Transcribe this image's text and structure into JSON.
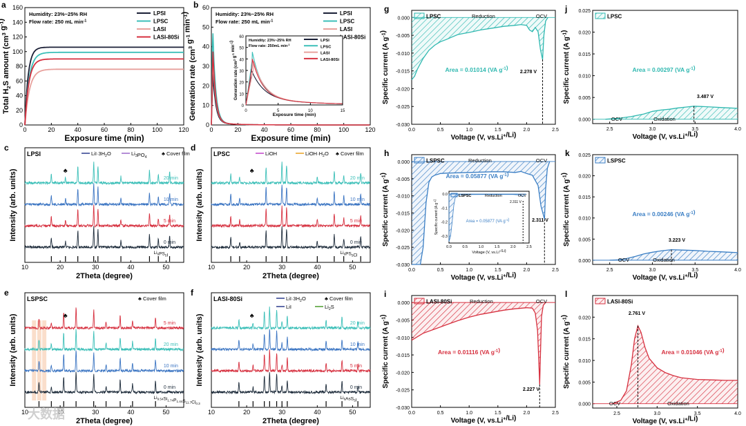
{
  "watermark": "大数据",
  "chart_data": [
    {
      "panel": "a",
      "type": "line",
      "xlabel": "Exposure time  (min)",
      "ylabel": "Total H2S amount (cm3 g-1)",
      "xlim": [
        0,
        120
      ],
      "ylim": [
        0,
        160
      ],
      "xticks": [
        0,
        20,
        40,
        60,
        80,
        100,
        120
      ],
      "yticks": [
        0,
        20,
        40,
        60,
        80,
        100,
        120,
        140,
        160
      ],
      "annotations": [
        "Humidity: 23%~25% RH",
        "Flow rate: 250 mL min-1"
      ],
      "legend": "top-right",
      "series": [
        {
          "name": "LPSI",
          "color": "#1a1f36",
          "plateau": 106,
          "tau": 2.5
        },
        {
          "name": "LPSC",
          "color": "#3bbfb8",
          "plateau": 99,
          "tau": 3.2
        },
        {
          "name": "LASI",
          "color": "#e8a09c",
          "plateau": 76,
          "tau": 3.5
        },
        {
          "name": "LASI-80Si",
          "color": "#d62f3e",
          "plateau": 90,
          "tau": 3.0
        }
      ]
    },
    {
      "panel": "b",
      "type": "line",
      "xlabel": "Exposure time  (min)",
      "ylabel": "Generation rate (cm3 g-1 min-1)",
      "xlim": [
        0,
        120
      ],
      "ylim": [
        0,
        60
      ],
      "xticks": [
        0,
        20,
        40,
        60,
        80,
        100,
        120
      ],
      "yticks": [
        0,
        10,
        20,
        30,
        40,
        50,
        60
      ],
      "annotations": [
        "Humidity: 23%~25% RH",
        "Flow rate: 250 mL min-1"
      ],
      "legend": "top-right",
      "series": [
        {
          "name": "LPSI",
          "color": "#1a1f36",
          "peak": 25,
          "peak_time": 1.2
        },
        {
          "name": "LPSC",
          "color": "#3bbfb8",
          "peak": 50,
          "peak_time": 1.0
        },
        {
          "name": "LASI",
          "color": "#e8a09c",
          "peak": 32,
          "peak_time": 1.2
        },
        {
          "name": "LASI-80Si",
          "color": "#d62f3e",
          "peak": 38,
          "peak_time": 1.1
        }
      ],
      "inset": {
        "xlabel": "Exposure time  (min)",
        "ylabel": "Generation rate (cm3 g-1 min-1)",
        "xlim": [
          0,
          15
        ],
        "ylim": [
          0,
          60
        ],
        "xticks": [
          0,
          5,
          10,
          15
        ],
        "yticks": [
          0,
          10,
          20,
          30,
          40,
          50,
          60
        ],
        "annotations": [
          "Humidity: 23%~25% RH",
          "Flow rate: 250mL min-1"
        ],
        "legend": [
          "LPSI",
          "LPSC",
          "LASI",
          "LASI-80Si"
        ]
      }
    },
    {
      "panel": "c",
      "type": "line",
      "title": "LPSI",
      "xlabel": "2Theta (degree)",
      "ylabel": "Intensity (arb. units)",
      "xlim": [
        10,
        55
      ],
      "xticks": [
        10,
        20,
        30,
        40,
        50
      ],
      "legend_entries": [
        "LiI·3H2O",
        "Li3PO4",
        "♣ Cover film"
      ],
      "legend_colors": [
        "#2b3a8c",
        "#9a66c8",
        "#222222"
      ],
      "traces": [
        {
          "name": "0 min",
          "color": "#1d2b3a"
        },
        {
          "name": "5 min",
          "color": "#d62f3e"
        },
        {
          "name": "10 min",
          "color": "#3a74c2"
        },
        {
          "name": "20 min",
          "color": "#3bbfb8"
        }
      ],
      "peaks": [
        17.5,
        21.5,
        25.0,
        29.5,
        30.7,
        37.2,
        45.3,
        47.8,
        51.0
      ],
      "reference": "Li6PS5I",
      "cover_film_mark": 21.5
    },
    {
      "panel": "d",
      "type": "line",
      "title": "LPSC",
      "xlabel": "2Theta (degree)",
      "ylabel": "Intensity (arb. units)",
      "xlim": [
        10,
        55
      ],
      "xticks": [
        10,
        20,
        30,
        40,
        50
      ],
      "legend_entries": [
        "LiOH",
        "LiOH·H2O",
        "♣ Cover film"
      ],
      "legend_colors": [
        "#c040c8",
        "#e8a020",
        "#222222"
      ],
      "traces": [
        {
          "name": "0 min",
          "color": "#1d2b3a"
        },
        {
          "name": "5 min",
          "color": "#d62f3e"
        },
        {
          "name": "10 min",
          "color": "#3a74c2"
        },
        {
          "name": "20 min",
          "color": "#3bbfb8"
        }
      ],
      "peaks": [
        15.5,
        18.0,
        25.5,
        30.0,
        31.3,
        40.0,
        44.8,
        47.5,
        52.3
      ],
      "reference": "Li6PS5Cl",
      "cover_film_mark": 21.5
    },
    {
      "panel": "e",
      "type": "line",
      "title": "LSPSC",
      "xlabel": "2Theta (degree)",
      "ylabel": "Intensity (arb. units)",
      "xlim": [
        10,
        55
      ],
      "xticks": [
        10,
        20,
        30,
        40,
        50
      ],
      "legend_entries": [
        "♣ Cover film"
      ],
      "legend_colors": [
        "#222222"
      ],
      "traces": [
        {
          "name": "0 min",
          "color": "#1d2b3a"
        },
        {
          "name": "10 min",
          "color": "#3a74c2"
        },
        {
          "name": "20 min",
          "color": "#3bbfb8"
        },
        {
          "name": "5 min",
          "color": "#d62f3e"
        }
      ],
      "peaks": [
        14.0,
        17.5,
        21.0,
        24.5,
        29.5,
        33.0,
        37.0,
        40.5,
        47.0
      ],
      "reference": "Li9.54Si1.74P1.44S11.7Cl0.3",
      "cover_film_mark": 21.5
    },
    {
      "panel": "f",
      "type": "line",
      "title": "LASI-80Si",
      "xlabel": "2Theta (degree)",
      "ylabel": "Intensity (arb. units)",
      "xlim": [
        10,
        55
      ],
      "xticks": [
        10,
        20,
        30,
        40,
        50
      ],
      "legend_entries": [
        "LiI·3H2O",
        "♣ Cover film",
        "LiI",
        "Li2S"
      ],
      "legend_colors": [
        "#2b3a8c",
        "#222222",
        "#2b3a8c",
        "#4a9a2a"
      ],
      "traces": [
        {
          "name": "0 min",
          "color": "#1d2b3a"
        },
        {
          "name": "5 min",
          "color": "#d62f3e"
        },
        {
          "name": "10 min",
          "color": "#3a74c2"
        },
        {
          "name": "20 min",
          "color": "#3bbfb8"
        }
      ],
      "peaks": [
        17.8,
        21.8,
        25.0,
        26.5,
        28.5,
        30.0,
        31.5,
        42.5,
        47.0,
        51.5
      ],
      "reference": "Li6AsS5I",
      "cover_film_mark": 21.5
    },
    {
      "panel": "g",
      "type": "area",
      "name": "LPSC",
      "xlabel": "Voltage (V, vs.Li+/Li)",
      "ylabel": "Specific current (A g-1)",
      "xlim": [
        0,
        2.5
      ],
      "ylim": [
        -0.03,
        0.002
      ],
      "xticks": [
        0.0,
        0.5,
        1.0,
        1.5,
        2.0,
        2.5
      ],
      "yticks": [
        0.0,
        -0.005,
        -0.01,
        -0.015,
        -0.02,
        -0.025,
        -0.03
      ],
      "labels": [
        "Reduction",
        "OCV"
      ],
      "area_label": "Area = 0.01014 (VA g-1)",
      "peak_label": "2.278 V",
      "peak_x": 2.278,
      "color": "#2fb8b0",
      "x": [
        0.0,
        0.05,
        0.1,
        0.2,
        0.3,
        0.4,
        0.5,
        0.6,
        0.7,
        0.8,
        0.9,
        1.0,
        1.2,
        1.4,
        1.6,
        1.8,
        1.9,
        2.0,
        2.05,
        2.1,
        2.15,
        2.2,
        2.24,
        2.278,
        2.3,
        2.33,
        2.37
      ],
      "y": [
        -0.0175,
        -0.0165,
        -0.0145,
        -0.0115,
        -0.0092,
        -0.0078,
        -0.0068,
        -0.0062,
        -0.0055,
        -0.0048,
        -0.0045,
        -0.0042,
        -0.0035,
        -0.003,
        -0.0025,
        -0.0022,
        -0.002,
        -0.0022,
        -0.0035,
        -0.004,
        -0.0028,
        -0.004,
        -0.009,
        -0.0118,
        -0.005,
        -0.001,
        0.0
      ]
    },
    {
      "panel": "h",
      "type": "area",
      "name": "LSPSC",
      "xlabel": "Voltage (V, vs.Li+/Li)",
      "ylabel": "Specific current (A g-1)",
      "xlim": [
        0,
        2.5
      ],
      "ylim": [
        -0.03,
        0.002
      ],
      "xticks": [
        0.0,
        0.5,
        1.0,
        1.5,
        2.0,
        2.5
      ],
      "yticks": [
        0.0,
        -0.005,
        -0.01,
        -0.015,
        -0.02,
        -0.025,
        -0.03
      ],
      "labels": [
        "Reduction",
        "OCV"
      ],
      "area_label": "Area = 0.05877 (VA g-1)",
      "peak_label": "2.311 V",
      "peak_x": 2.311,
      "color": "#3a7ec4",
      "x": [
        0.0,
        0.05,
        0.1,
        0.15,
        0.2,
        0.25,
        0.3,
        0.35,
        0.4,
        0.5,
        0.6,
        0.8,
        1.0,
        1.2,
        1.4,
        1.6,
        1.8,
        1.9,
        2.0,
        2.1,
        2.2,
        2.25,
        2.311,
        2.33,
        2.36,
        2.4
      ],
      "y": [
        -0.03,
        -0.03,
        -0.03,
        -0.03,
        -0.025,
        -0.012,
        -0.006,
        -0.0045,
        -0.004,
        -0.0035,
        -0.0034,
        -0.0033,
        -0.0032,
        -0.0031,
        -0.003,
        -0.003,
        -0.0032,
        -0.0029,
        -0.0035,
        -0.004,
        -0.007,
        -0.013,
        -0.0168,
        -0.008,
        -0.002,
        0.0
      ],
      "inset": {
        "name": "LSPSC",
        "labels": [
          "Reduction",
          "OCV"
        ],
        "area_label": "Area = 0.05877 (VA g-1)",
        "peak_label": "2.311 V",
        "xlabel": "Voltage (V, vs.Li+/Li)",
        "ylabel": "Specific current (A g-1)",
        "xticks": [
          0.0,
          0.5,
          1.0,
          1.5,
          2.0,
          2.5
        ],
        "yticks": [
          0.0,
          -0.1,
          -0.2,
          -0.3
        ]
      }
    },
    {
      "panel": "i",
      "type": "area",
      "name": "LASI-80Si",
      "xlabel": "Voltage (V, vs.Li+/Li)",
      "ylabel": "Specific current (A g-1)",
      "xlim": [
        0,
        2.5
      ],
      "ylim": [
        -0.03,
        0.002
      ],
      "xticks": [
        0.0,
        0.5,
        1.0,
        1.5,
        2.0,
        2.5
      ],
      "yticks": [
        0.0,
        -0.005,
        -0.01,
        -0.015,
        -0.02,
        -0.025,
        -0.03
      ],
      "labels": [
        "Reduction",
        "OCV"
      ],
      "area_label": "Area = 0.01116 (VA g-1)",
      "peak_label": "2.227 V",
      "peak_x": 2.227,
      "color": "#d62f3e",
      "x": [
        0.0,
        0.1,
        0.2,
        0.4,
        0.6,
        0.8,
        1.0,
        1.2,
        1.4,
        1.6,
        1.8,
        2.0,
        2.1,
        2.15,
        2.19,
        2.21,
        2.227,
        2.24,
        2.26,
        2.29,
        2.33
      ],
      "y": [
        -0.0108,
        -0.0098,
        -0.0088,
        -0.0076,
        -0.0064,
        -0.0052,
        -0.0042,
        -0.0034,
        -0.0028,
        -0.0022,
        -0.0018,
        -0.0015,
        -0.0016,
        -0.003,
        -0.008,
        -0.016,
        -0.0235,
        -0.015,
        -0.004,
        -0.0008,
        0.0
      ]
    },
    {
      "panel": "j",
      "type": "area",
      "name": "LPSC",
      "xlabel": "Voltage (V, vs.Li+/Li)",
      "ylabel": "Specific current (A g-1)",
      "xlim": [
        2.3,
        4.0
      ],
      "ylim": [
        -0.001,
        0.025
      ],
      "xticks": [
        2.5,
        3.0,
        3.5,
        4.0
      ],
      "yticks": [
        0.0,
        0.005,
        0.01,
        0.015,
        0.02,
        0.025
      ],
      "labels": [
        "OCV",
        "Oxidation"
      ],
      "area_label": "Area = 0.00297 (VA g-1)",
      "peak_label": "3.487 V",
      "peak_x": 3.487,
      "color": "#2fb8b0",
      "x": [
        2.45,
        2.6,
        2.75,
        2.9,
        3.0,
        3.1,
        3.2,
        3.3,
        3.4,
        3.487,
        3.6,
        3.7,
        3.8,
        3.9,
        4.0
      ],
      "y": [
        0.0,
        0.0002,
        0.0006,
        0.0012,
        0.0018,
        0.0021,
        0.0023,
        0.0026,
        0.0028,
        0.003,
        0.0029,
        0.0028,
        0.0027,
        0.0026,
        0.0025
      ]
    },
    {
      "panel": "k",
      "type": "area",
      "name": "LSPSC",
      "xlabel": "Voltage (V, vs.Li+/Li)",
      "ylabel": "Specific current (A g-1)",
      "xlim": [
        2.3,
        4.0
      ],
      "ylim": [
        -0.001,
        0.025
      ],
      "xticks": [
        2.5,
        3.0,
        3.5,
        4.0
      ],
      "yticks": [
        0.0,
        0.005,
        0.01,
        0.015,
        0.02,
        0.025
      ],
      "labels": [
        "OCV",
        "Oxidation"
      ],
      "area_label": "Area = 0.00246 (VA g-1)",
      "peak_label": "3.223 V",
      "peak_x": 3.223,
      "color": "#3a7ec4",
      "x": [
        2.5,
        2.6,
        2.7,
        2.8,
        2.9,
        3.0,
        3.1,
        3.223,
        3.35,
        3.5,
        3.65,
        3.8,
        3.9,
        4.0
      ],
      "y": [
        0.0,
        0.0001,
        0.0004,
        0.0009,
        0.0015,
        0.0019,
        0.0022,
        0.0025,
        0.0024,
        0.0023,
        0.0021,
        0.002,
        0.0019,
        0.0018
      ]
    },
    {
      "panel": "l",
      "type": "area",
      "name": "LASI-80Si",
      "xlabel": "Voltage (V, vs.Li+/Li)",
      "ylabel": "Specific current (A g-1)",
      "xlim": [
        2.2,
        4.0
      ],
      "ylim": [
        -0.001,
        0.025
      ],
      "xticks": [
        2.5,
        3.0,
        3.5,
        4.0
      ],
      "yticks": [
        0.0,
        0.005,
        0.01,
        0.015,
        0.02
      ],
      "labels": [
        "OCV",
        "Oxidation"
      ],
      "area_label": "Area = 0.01046 (VA g-1)",
      "peak_label": "2.761 V",
      "peak_x": 2.761,
      "color": "#d62f3e",
      "x": [
        2.45,
        2.55,
        2.62,
        2.68,
        2.72,
        2.761,
        2.8,
        2.85,
        2.9,
        3.0,
        3.1,
        3.2,
        3.3,
        3.5,
        3.7,
        3.85,
        4.0
      ],
      "y": [
        0.0,
        0.0008,
        0.003,
        0.009,
        0.015,
        0.018,
        0.0165,
        0.013,
        0.0105,
        0.0083,
        0.0072,
        0.0065,
        0.006,
        0.0056,
        0.0055,
        0.0054,
        0.0054
      ]
    }
  ]
}
